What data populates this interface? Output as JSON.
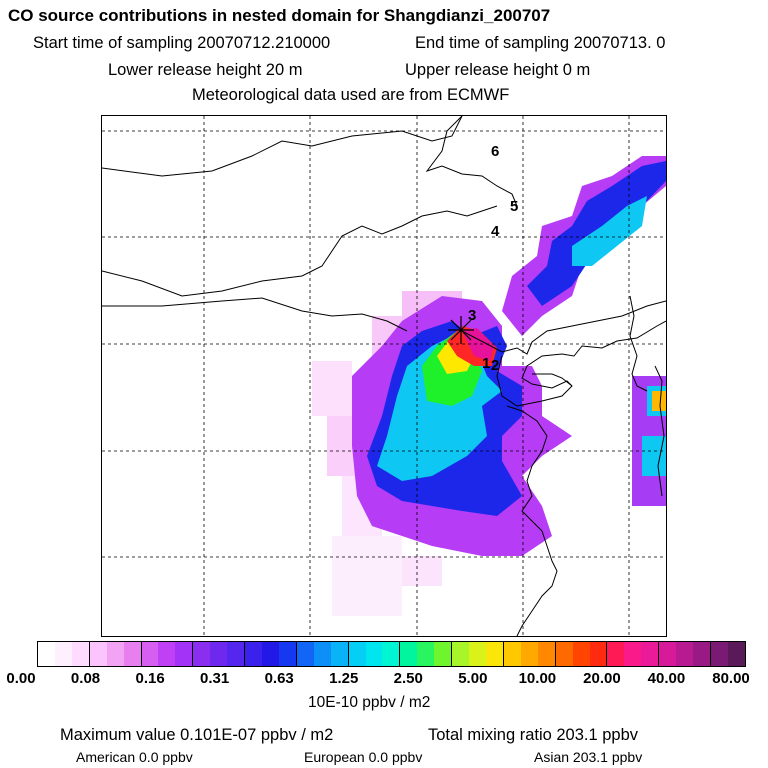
{
  "title": "CO  source contributions in nested domain for Shangdianzi_200707",
  "sampling": {
    "start": "Start time of sampling 20070712.210000",
    "end": "End time of sampling 20070713.     0"
  },
  "release": {
    "lower": "Lower release height   20 m",
    "upper": "Upper release height    0 m"
  },
  "met": "Meteorological data used are from ECMWF",
  "map_labels": [
    "6",
    "5",
    "4",
    "3",
    "1",
    "2"
  ],
  "colorbar": {
    "colors": [
      "#ffffff",
      "#fff0ff",
      "#ffdcff",
      "#fcc4fc",
      "#f3a3f3",
      "#e87fee",
      "#d65ef0",
      "#c040f5",
      "#a333f6",
      "#8a2ff0",
      "#6f29ee",
      "#5526ee",
      "#3a22ec",
      "#2319e6",
      "#1538f0",
      "#1166f5",
      "#0d8ff8",
      "#0ab2f7",
      "#05cff5",
      "#00e6ee",
      "#00f5d2",
      "#00f59e",
      "#28f560",
      "#6ef52e",
      "#a8f52a",
      "#daf21a",
      "#fbe60a",
      "#ffc800",
      "#ffa800",
      "#ff8800",
      "#ff6a00",
      "#ff4500",
      "#ff2a10",
      "#ff1a55",
      "#fa1a8a",
      "#eb1a99",
      "#d61a99",
      "#b81a92",
      "#991a85",
      "#7a1a72",
      "#5a1a5a"
    ],
    "tick_labels": [
      "0.00",
      "0.08",
      "0.16",
      "0.31",
      "0.63",
      "1.25",
      "2.50",
      "5.00",
      "10.00",
      "20.00",
      "40.00",
      "80.00"
    ],
    "unit": "10E-10 ppbv / m2"
  },
  "summary": {
    "max_value": "Maximum value  0.101E-07 ppbv / m2",
    "total": "Total mixing ratio     203.1 ppbv",
    "american": "American        0.0 ppbv",
    "european": "European        0.0 ppbv",
    "asian": "Asian      203.1 ppbv"
  }
}
